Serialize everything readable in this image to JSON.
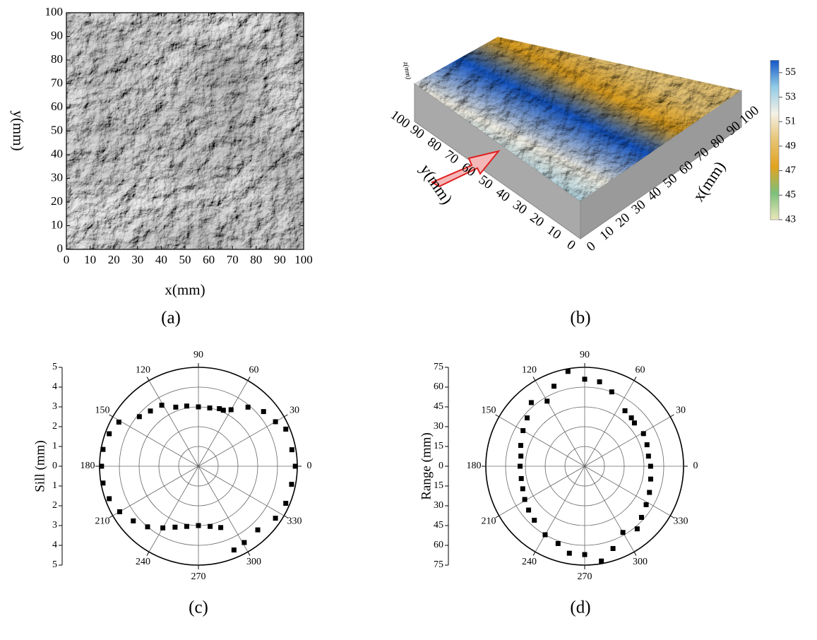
{
  "chart_data": [
    {
      "type": "image",
      "caption": "(a)",
      "xlabel": "x(mm)",
      "ylabel": "y(mm)",
      "xlim": [
        0,
        100
      ],
      "ylim": [
        0,
        100
      ],
      "xticks": [
        0,
        10,
        20,
        30,
        40,
        50,
        60,
        70,
        80,
        90,
        100
      ],
      "yticks": [
        0,
        10,
        20,
        30,
        40,
        50,
        60,
        70,
        80,
        90,
        100
      ]
    },
    {
      "type": "surface3d",
      "caption": "(b)",
      "xlabel": "x(mm)",
      "ylabel": "y(mm)",
      "zlabel": "z(mm)",
      "xlim": [
        0,
        100
      ],
      "ylim": [
        0,
        100
      ],
      "xticks": [
        0,
        10,
        20,
        30,
        40,
        50,
        60,
        70,
        80,
        90,
        100
      ],
      "yticks": [
        0,
        10,
        20,
        30,
        40,
        50,
        60,
        70,
        80,
        90,
        100
      ],
      "colorbar": {
        "lim": [
          43,
          56
        ],
        "ticks": [
          43,
          45,
          47,
          49,
          51,
          53,
          55
        ],
        "colors": [
          "#ece8bc",
          "#7cc07a",
          "#e2a320",
          "#e6c474",
          "#f4f1e6",
          "#92cce6",
          "#1457c8"
        ]
      }
    },
    {
      "type": "polar-scatter",
      "caption": "(c)",
      "rlabel": "Sill (mm)",
      "color": "#000000",
      "rlim": [
        0,
        5
      ],
      "rticks": [
        0,
        1,
        2,
        3,
        4,
        5
      ],
      "thetaticks": [
        0,
        30,
        60,
        90,
        120,
        150,
        180,
        210,
        240,
        270,
        300,
        330
      ],
      "theta": [
        0,
        10,
        23,
        30,
        40,
        50,
        60,
        66,
        70,
        79,
        90,
        101,
        111,
        121,
        131,
        140,
        151,
        160,
        170,
        180,
        190,
        200,
        210,
        220,
        230,
        240,
        249,
        259,
        270,
        281,
        290,
        293,
        301,
        313,
        326,
        337,
        349
      ],
      "values": [
        4.9,
        4.8,
        4.8,
        4.5,
        4.3,
        3.9,
        3.3,
        3.1,
        3.1,
        3.0,
        3.0,
        3.1,
        3.2,
        3.6,
        3.7,
        3.9,
        4.6,
        4.8,
        4.9,
        4.9,
        4.9,
        4.8,
        4.6,
        4.3,
        4.0,
        3.6,
        3.3,
        3.1,
        3.0,
        3.1,
        3.3,
        4.6,
        4.5,
        4.4,
        4.7,
        4.8,
        4.8
      ]
    },
    {
      "type": "polar-scatter",
      "caption": "(d)",
      "rlabel": "Range (mm)",
      "color": "#000000",
      "rlim": [
        0,
        75
      ],
      "rticks": [
        0,
        15,
        30,
        45,
        60,
        75
      ],
      "thetaticks": [
        0,
        30,
        60,
        90,
        120,
        150,
        180,
        210,
        240,
        270,
        300,
        330
      ],
      "theta": [
        0,
        9,
        19,
        29,
        41,
        46,
        54,
        70,
        80,
        90,
        100,
        111,
        120,
        130,
        140,
        150,
        162,
        171,
        180,
        191,
        200,
        209,
        218,
        227,
        240,
        251,
        260,
        270,
        280,
        289,
        300,
        310,
        318,
        328,
        338,
        349
      ],
      "values": [
        50,
        49,
        50,
        51,
        50,
        51,
        52,
        60,
        65,
        66,
        73,
        65,
        57,
        63,
        57,
        54,
        51,
        49,
        49,
        49,
        50,
        52,
        54,
        56,
        60,
        62,
        67,
        67,
        73,
        66,
        58,
        62,
        58,
        55,
        53,
        51
      ]
    }
  ]
}
